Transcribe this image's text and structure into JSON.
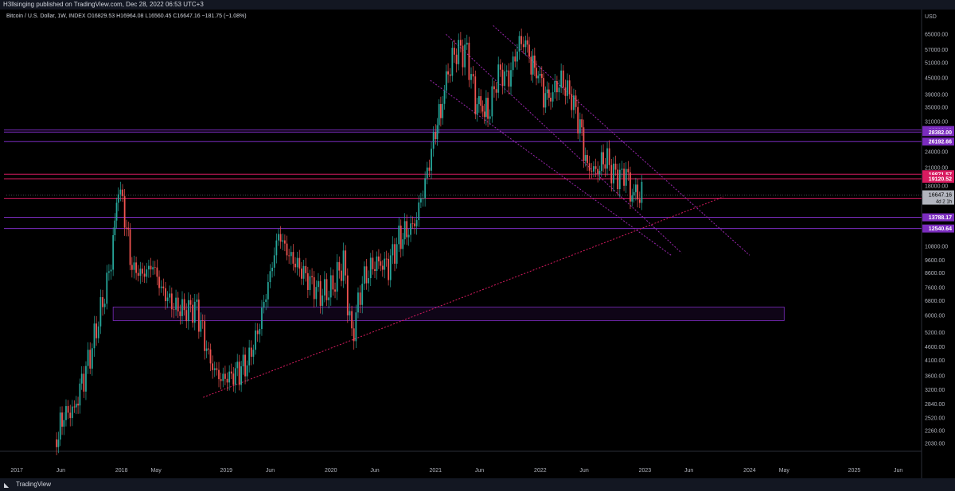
{
  "header": {
    "publish_line": "H3llsinging published on TradingView.com, Dec 28, 2022 06:53 UTC+3",
    "ohlc_line": "Bitcoin / U.S. Dollar, 1W, INDEX  O16829.53  H16964.08  L16560.45  C16647.16  −181.75 (−1.08%)"
  },
  "footer": {
    "brand": "TradingView",
    "logo_icon": "tradingview-logo-icon"
  },
  "colors": {
    "up": "#26a69a",
    "down": "#ef5350",
    "purple_line": "#7b2cbf",
    "magenta_line": "#d81b60",
    "trend_dotted": "#9c27b0"
  },
  "chart_data": {
    "type": "candlestick",
    "title": "",
    "currency_label": "USD",
    "scale": "log",
    "ylim": [
      1900,
      72000
    ],
    "x_ticks": [
      "2017",
      "Jun",
      "2018",
      "May",
      "2019",
      "Jun",
      "2020",
      "Jun",
      "2021",
      "Jun",
      "2022",
      "Jun",
      "2023",
      "Jun",
      "2024",
      "May",
      "2025",
      "Jun"
    ],
    "x_tick_times": [
      2017.0,
      2017.42,
      2018.0,
      2018.33,
      2019.0,
      2019.42,
      2020.0,
      2020.42,
      2021.0,
      2021.42,
      2022.0,
      2022.42,
      2023.0,
      2023.42,
      2024.0,
      2024.33,
      2025.0,
      2025.42
    ],
    "y_ticks": [
      65000,
      57000,
      51000,
      45000,
      39000,
      35000,
      31000,
      28000,
      24000,
      21000,
      18000,
      15600,
      12400,
      10800,
      9600,
      8600,
      7600,
      6800,
      6000,
      5200,
      4600,
      4100,
      3600,
      3200,
      2840,
      2520,
      2260,
      2030
    ],
    "y_tick_labels": [
      "65000.00",
      "57000.00",
      "51000.00",
      "45000.00",
      "39000.00",
      "35000.00",
      "31000.00",
      "28000.00",
      "24000.00",
      "21000.00",
      "18000.00",
      "15600.00",
      "12400.00",
      "10800.00",
      "9600.00",
      "8600.00",
      "7600.00",
      "6800.00",
      "6000.00",
      "5200.00",
      "4600.00",
      "4100.00",
      "3600.00",
      "3200.00",
      "2840.00",
      "2520.00",
      "2260.00",
      "2030.00"
    ],
    "horizontal_levels": [
      {
        "value": 28891.1,
        "label": "28891.10",
        "color": "#7b2cbf"
      },
      {
        "value": 28382.0,
        "label": "28382.00",
        "color": "#7b2cbf"
      },
      {
        "value": 26192.66,
        "label": "26192.66",
        "color": "#7b2cbf"
      },
      {
        "value": 19871.57,
        "label": "19871.57",
        "color": "#d81b60"
      },
      {
        "value": 19120.52,
        "label": "19120.52",
        "color": "#d81b60"
      },
      {
        "value": 16192.8,
        "label": "16192.80",
        "color": "#d81b60"
      },
      {
        "value": 13788.17,
        "label": "13788.17",
        "color": "#7b2cbf"
      },
      {
        "value": 12540.64,
        "label": "12540.64",
        "color": "#7b2cbf"
      }
    ],
    "current_price": {
      "value": 16647.16,
      "label": "16647.16",
      "sublabel": "4d 2 1h"
    },
    "support_zone": {
      "y_low": 5750,
      "y_high": 6450,
      "x_start": 2017.92,
      "x_end": 2024.33
    },
    "price_series": [
      [
        2017.38,
        2100
      ],
      [
        2017.45,
        2600
      ],
      [
        2017.55,
        2700
      ],
      [
        2017.62,
        3400
      ],
      [
        2017.7,
        4300
      ],
      [
        2017.78,
        5800
      ],
      [
        2017.86,
        7800
      ],
      [
        2017.92,
        11000
      ],
      [
        2017.97,
        18500
      ],
      [
        2018.03,
        14000
      ],
      [
        2018.1,
        9000
      ],
      [
        2018.2,
        8500
      ],
      [
        2018.3,
        9200
      ],
      [
        2018.38,
        7500
      ],
      [
        2018.5,
        6500
      ],
      [
        2018.6,
        6300
      ],
      [
        2018.72,
        6400
      ],
      [
        2018.85,
        4000
      ],
      [
        2018.95,
        3500
      ],
      [
        2019.05,
        3600
      ],
      [
        2019.2,
        4000
      ],
      [
        2019.3,
        5200
      ],
      [
        2019.42,
        8500
      ],
      [
        2019.5,
        12000
      ],
      [
        2019.6,
        10000
      ],
      [
        2019.7,
        9000
      ],
      [
        2019.8,
        8000
      ],
      [
        2019.9,
        7200
      ],
      [
        2020.0,
        7500
      ],
      [
        2020.12,
        9500
      ],
      [
        2020.2,
        5000
      ],
      [
        2020.3,
        8000
      ],
      [
        2020.42,
        9400
      ],
      [
        2020.55,
        9200
      ],
      [
        2020.65,
        11500
      ],
      [
        2020.8,
        13000
      ],
      [
        2020.9,
        18500
      ],
      [
        2021.0,
        29000
      ],
      [
        2021.05,
        34000
      ],
      [
        2021.12,
        48000
      ],
      [
        2021.2,
        57000
      ],
      [
        2021.3,
        56000
      ],
      [
        2021.38,
        37000
      ],
      [
        2021.45,
        35000
      ],
      [
        2021.5,
        33000
      ],
      [
        2021.6,
        47000
      ],
      [
        2021.7,
        45000
      ],
      [
        2021.8,
        61000
      ],
      [
        2021.86,
        60000
      ],
      [
        2021.93,
        49000
      ],
      [
        2021.98,
        47000
      ],
      [
        2022.05,
        38000
      ],
      [
        2022.1,
        39000
      ],
      [
        2022.2,
        44000
      ],
      [
        2022.3,
        38000
      ],
      [
        2022.38,
        30000
      ],
      [
        2022.45,
        21000
      ],
      [
        2022.55,
        20500
      ],
      [
        2022.62,
        23000
      ],
      [
        2022.7,
        20000
      ],
      [
        2022.78,
        19500
      ],
      [
        2022.82,
        20500
      ],
      [
        2022.86,
        17000
      ],
      [
        2022.93,
        16900
      ],
      [
        2022.99,
        16650
      ]
    ],
    "trendlines": [
      {
        "name": "",
        "from": [
          2018.78,
          3000
        ],
        "to": [
          2023.75,
          16400
        ],
        "color": "#d81b60",
        "style": "dotted"
      },
      {
        "name": "",
        "from": [
          2021.55,
          70000
        ],
        "to": [
          2024.0,
          10000
        ],
        "color": "#9c27b0",
        "style": "dotted"
      },
      {
        "name": "",
        "from": [
          2021.1,
          65000
        ],
        "to": [
          2023.35,
          10200
        ],
        "color": "#9c27b0",
        "style": "dotted"
      },
      {
        "name": "",
        "from": [
          2020.95,
          44000
        ],
        "to": [
          2023.25,
          10000
        ],
        "color": "#9c27b0",
        "style": "dotted"
      }
    ]
  }
}
